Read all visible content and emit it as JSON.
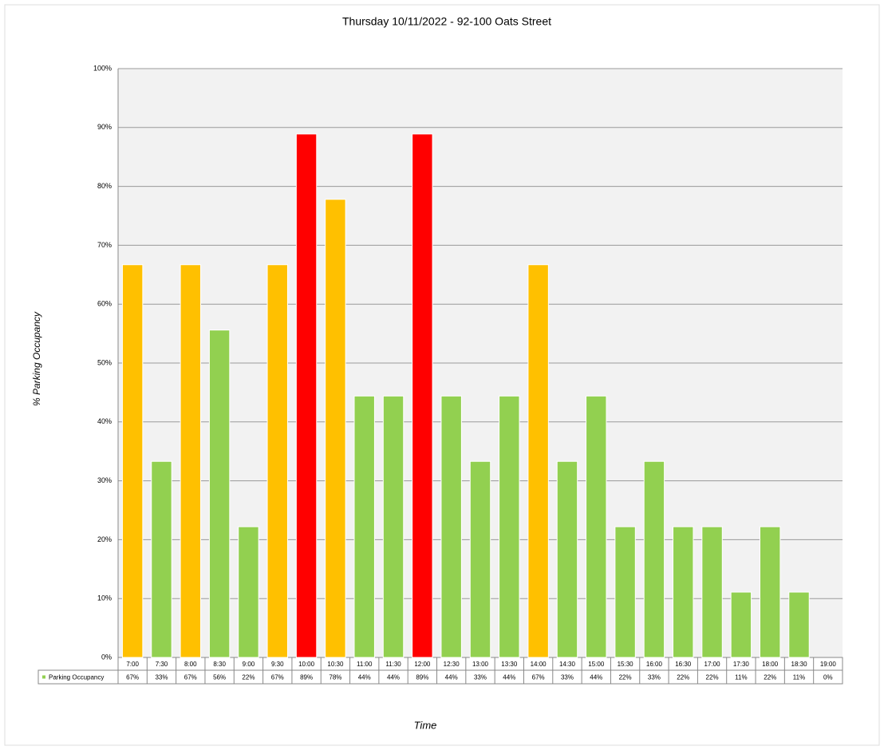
{
  "chart_data": {
    "type": "bar",
    "title": "Thursday 10/11/2022  - 92-100 Oats Street",
    "x_label": "Time",
    "y_label": "% Parking Occupancy",
    "categories": [
      "7:00",
      "7:30",
      "8:00",
      "8:30",
      "9:00",
      "9:30",
      "10:00",
      "10:30",
      "11:00",
      "11:30",
      "12:00",
      "12:30",
      "13:00",
      "13:30",
      "14:00",
      "14:30",
      "15:00",
      "15:30",
      "16:00",
      "16:30",
      "17:00",
      "17:30",
      "18:00",
      "18:30",
      "19:00"
    ],
    "series": [
      {
        "name": "Parking Occupancy",
        "color": "#92d050",
        "values": [
          66.7,
          33.3,
          66.7,
          55.6,
          22.2,
          66.7,
          88.9,
          77.8,
          44.4,
          44.4,
          88.9,
          44.4,
          33.3,
          44.4,
          66.7,
          33.3,
          44.4,
          22.2,
          33.3,
          22.2,
          22.2,
          11.1,
          22.2,
          11.1,
          0
        ],
        "value_labels": [
          "67%",
          "33%",
          "67%",
          "56%",
          "22%",
          "67%",
          "89%",
          "78%",
          "44%",
          "44%",
          "89%",
          "44%",
          "33%",
          "44%",
          "67%",
          "33%",
          "44%",
          "22%",
          "33%",
          "22%",
          "22%",
          "11%",
          "22%",
          "11%",
          "0%"
        ],
        "colors": [
          "#ffc000",
          "#92d050",
          "#ffc000",
          "#92d050",
          "#92d050",
          "#ffc000",
          "#ff0000",
          "#ffc000",
          "#92d050",
          "#92d050",
          "#ff0000",
          "#92d050",
          "#92d050",
          "#92d050",
          "#ffc000",
          "#92d050",
          "#92d050",
          "#92d050",
          "#92d050",
          "#92d050",
          "#92d050",
          "#92d050",
          "#92d050",
          "#92d050",
          "#92d050"
        ]
      }
    ],
    "ylim": [
      0,
      100
    ],
    "yticks": [
      {
        "value": 0,
        "label": "0%"
      },
      {
        "value": 10,
        "label": "10%"
      },
      {
        "value": 20,
        "label": "20%"
      },
      {
        "value": 30,
        "label": "30%"
      },
      {
        "value": 40,
        "label": "40%"
      },
      {
        "value": 50,
        "label": "50%"
      },
      {
        "value": 60,
        "label": "60%"
      },
      {
        "value": 70,
        "label": "70%"
      },
      {
        "value": 80,
        "label": "80%"
      },
      {
        "value": 90,
        "label": "90%"
      },
      {
        "value": 100,
        "label": "100%"
      }
    ],
    "grid": true
  }
}
